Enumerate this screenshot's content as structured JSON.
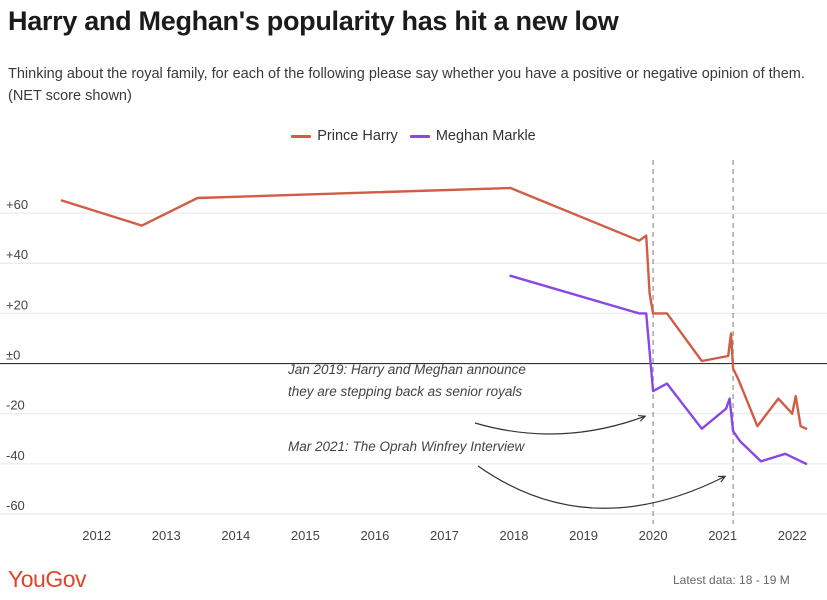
{
  "title": "Harry and Meghan's popularity has hit a new low",
  "subtitle": "Thinking about the royal family, for each of the following please say whether you have a positive or negative opinion of them. (NET score shown)",
  "brand": "YouGov",
  "footer": "Latest data: 18 - 19 M",
  "colors": {
    "harry": "#d15d45",
    "meghan": "#8b46e6",
    "zero_line": "#333333",
    "grid": "#e6e6e6"
  },
  "chart_data": {
    "type": "line",
    "title": "Harry and Meghan's popularity has hit a new low",
    "xlabel": "",
    "ylabel": "",
    "xlim": [
      2011.3,
      2022.5
    ],
    "ylim": [
      -60,
      70
    ],
    "x_ticks": [
      2012,
      2013,
      2014,
      2015,
      2016,
      2017,
      2018,
      2019,
      2020,
      2021,
      2022
    ],
    "x_tick_labels": [
      "2012",
      "2013",
      "2014",
      "2015",
      "2016",
      "2017",
      "2018",
      "2019",
      "2020",
      "2021",
      "2022"
    ],
    "y_ticks": [
      60,
      40,
      20,
      0,
      -20,
      -40,
      -60
    ],
    "y_tick_labels": [
      "+60",
      "+40",
      "+20",
      "±0",
      "-20",
      "-40",
      "-60"
    ],
    "grid": true,
    "legend_position": "top-center",
    "series": [
      {
        "name": "Prince Harry",
        "color": "#d15d45",
        "points": [
          [
            2011.5,
            65
          ],
          [
            2012.65,
            55
          ],
          [
            2013.45,
            66
          ],
          [
            2017.95,
            70
          ],
          [
            2019.8,
            49
          ],
          [
            2019.9,
            51
          ],
          [
            2019.95,
            28
          ],
          [
            2020.0,
            20
          ],
          [
            2020.2,
            20
          ],
          [
            2020.7,
            1
          ],
          [
            2021.08,
            3
          ],
          [
            2021.12,
            12
          ],
          [
            2021.15,
            -2
          ],
          [
            2021.22,
            -6
          ],
          [
            2021.5,
            -25
          ],
          [
            2021.8,
            -14
          ],
          [
            2022.0,
            -20
          ],
          [
            2022.05,
            -13
          ],
          [
            2022.12,
            -25
          ],
          [
            2022.2,
            -26
          ]
        ]
      },
      {
        "name": "Meghan Markle",
        "color": "#8b46e6",
        "points": [
          [
            2017.95,
            35
          ],
          [
            2019.8,
            20
          ],
          [
            2019.9,
            20
          ],
          [
            2020.0,
            -11
          ],
          [
            2020.2,
            -8
          ],
          [
            2020.7,
            -26
          ],
          [
            2021.05,
            -18
          ],
          [
            2021.1,
            -14
          ],
          [
            2021.15,
            -27
          ],
          [
            2021.25,
            -31
          ],
          [
            2021.55,
            -39
          ],
          [
            2021.9,
            -36
          ],
          [
            2022.05,
            -38
          ],
          [
            2022.2,
            -40
          ]
        ]
      }
    ],
    "event_lines": [
      2020.0,
      2021.15
    ],
    "annotations": [
      {
        "text": "Jan 2019: Harry and Meghan announce",
        "line2": "they are stepping back as senior royals",
        "target_x": 2020.0,
        "target_y": -21
      },
      {
        "text": "Mar 2021: The Oprah Winfrey Interview",
        "target_x": 2021.15,
        "target_y": -45
      }
    ]
  }
}
